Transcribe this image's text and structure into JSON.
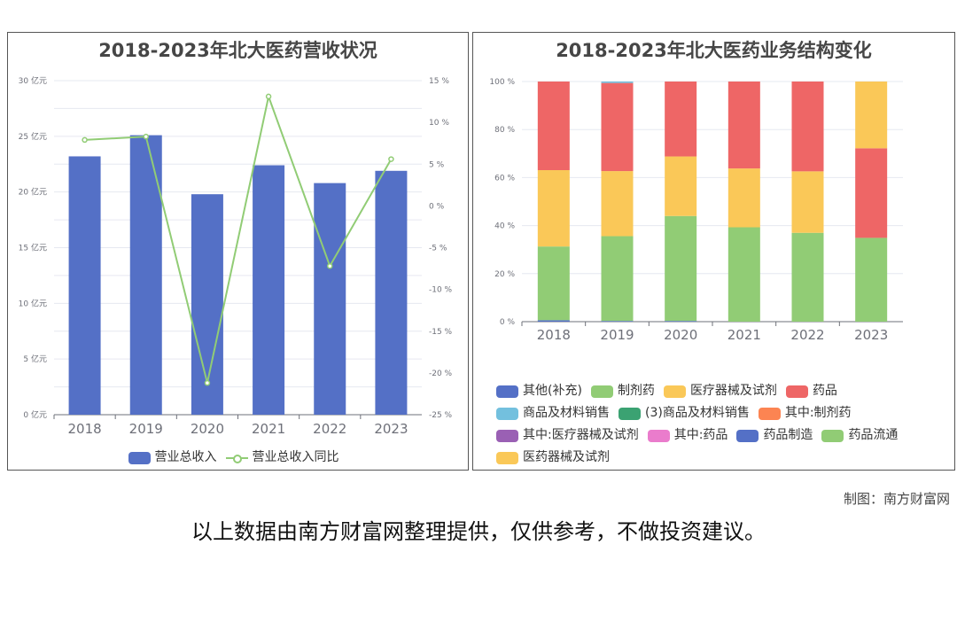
{
  "chart_data": [
    {
      "type": "bar+line",
      "title": "2018-2023年北大医药营收状况",
      "categories": [
        "2018",
        "2019",
        "2020",
        "2021",
        "2022",
        "2023"
      ],
      "y_left": {
        "ticks": [
          "0 亿元",
          "5 亿元",
          "10 亿元",
          "15 亿元",
          "20 亿元",
          "25 亿元",
          "30 亿元"
        ],
        "range": [
          0,
          30
        ],
        "unit": "亿元"
      },
      "y_right": {
        "ticks": [
          "-25 %",
          "-20 %",
          "-15 %",
          "-10 %",
          "-5 %",
          "0 %",
          "5 %",
          "10 %",
          "15 %"
        ],
        "range": [
          -25,
          15
        ],
        "unit": "%"
      },
      "series": [
        {
          "name": "营业总收入",
          "type": "bar",
          "axis": "left",
          "color": "#5470c6",
          "values": [
            23.2,
            25.1,
            19.8,
            22.4,
            20.8,
            21.9
          ]
        },
        {
          "name": "营业总收入同比",
          "type": "line",
          "axis": "right",
          "color": "#91cc75",
          "values": [
            7.9,
            8.3,
            -21.2,
            13.1,
            -7.2,
            5.6
          ]
        }
      ],
      "grid": true,
      "legend": "bottom"
    },
    {
      "type": "stacked-bar-percent",
      "title": "2018-2023年北大医药业务结构变化",
      "categories": [
        "2018",
        "2019",
        "2020",
        "2021",
        "2022",
        "2023"
      ],
      "y": {
        "ticks": [
          "0 %",
          "20 %",
          "40 %",
          "60 %",
          "80 %",
          "100 %"
        ],
        "range": [
          0,
          100
        ],
        "unit": "%"
      },
      "series": [
        {
          "name": "其他(补充)",
          "color": "#5470c6",
          "values": [
            0.6,
            0.3,
            0.3,
            0,
            0,
            0
          ]
        },
        {
          "name": "制剂药",
          "color": "#91cc75",
          "values": [
            30.7,
            35.3,
            43.7,
            39.3,
            37.0,
            34.9
          ]
        },
        {
          "name": "医疗器械及试剂",
          "color": "#fac858",
          "values": [
            31.8,
            27.1,
            24.8,
            24.5,
            25.6,
            0
          ]
        },
        {
          "name": "药品",
          "color": "#ee6666",
          "values": [
            36.9,
            36.7,
            31.2,
            36.2,
            37.4,
            37.3
          ]
        },
        {
          "name": "商品及材料销售",
          "color": "#73c0de",
          "values": [
            0,
            0.6,
            0,
            0,
            0,
            0
          ]
        },
        {
          "name": "(3)商品及材料销售",
          "color": "#3ba272",
          "values": [
            0,
            0,
            0,
            0,
            0,
            0
          ]
        },
        {
          "name": "其中:制剂药",
          "color": "#fc8452",
          "values": [
            0,
            0,
            0,
            0,
            0,
            0
          ]
        },
        {
          "name": "其中:医疗器械及试剂",
          "color": "#9a60b4",
          "values": [
            0,
            0,
            0,
            0,
            0,
            0
          ]
        },
        {
          "name": "其中:药品",
          "color": "#ea7ccc",
          "values": [
            0,
            0,
            0,
            0,
            0,
            0
          ]
        },
        {
          "name": "药品制造",
          "color": "#5470c6",
          "values": [
            0,
            0,
            0,
            0,
            0,
            0
          ]
        },
        {
          "name": "药品流通",
          "color": "#91cc75",
          "values": [
            0,
            0,
            0,
            0,
            0,
            0
          ]
        },
        {
          "name": "医药器械及试剂",
          "color": "#fac858",
          "values": [
            0,
            0,
            0,
            0,
            0,
            27.8
          ]
        }
      ],
      "grid": true,
      "legend": "bottom"
    }
  ],
  "footer": {
    "credit": "制图：南方财富网",
    "note": "以上数据由南方财富网整理提供，仅供参考，不做投资建议。"
  }
}
